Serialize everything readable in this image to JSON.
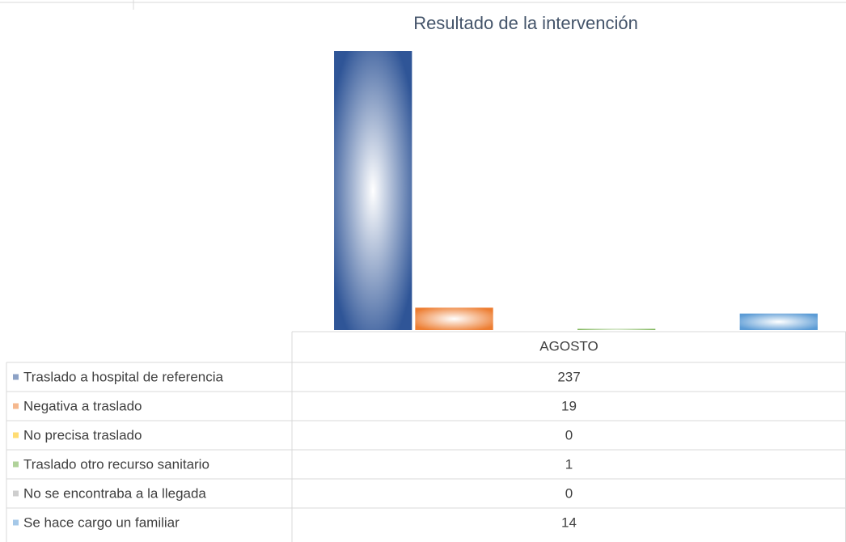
{
  "chart_data": {
    "type": "bar",
    "title": "Resultado de la intervención",
    "categories": [
      "AGOSTO"
    ],
    "series": [
      {
        "name": "Traslado a hospital de referencia",
        "color": "#2f5597",
        "values": [
          237
        ]
      },
      {
        "name": "Negativa a traslado",
        "color": "#ed7d31",
        "values": [
          19
        ]
      },
      {
        "name": "No precisa traslado",
        "color": "#ffc000",
        "values": [
          0
        ]
      },
      {
        "name": "Traslado otro recurso sanitario",
        "color": "#70ad47",
        "values": [
          1
        ]
      },
      {
        "name": "No se encontraba a la llegada",
        "color": "#a5a5a5",
        "values": [
          0
        ]
      },
      {
        "name": "Se hace cargo un familiar",
        "color": "#5b9bd5",
        "values": [
          14
        ]
      }
    ]
  }
}
